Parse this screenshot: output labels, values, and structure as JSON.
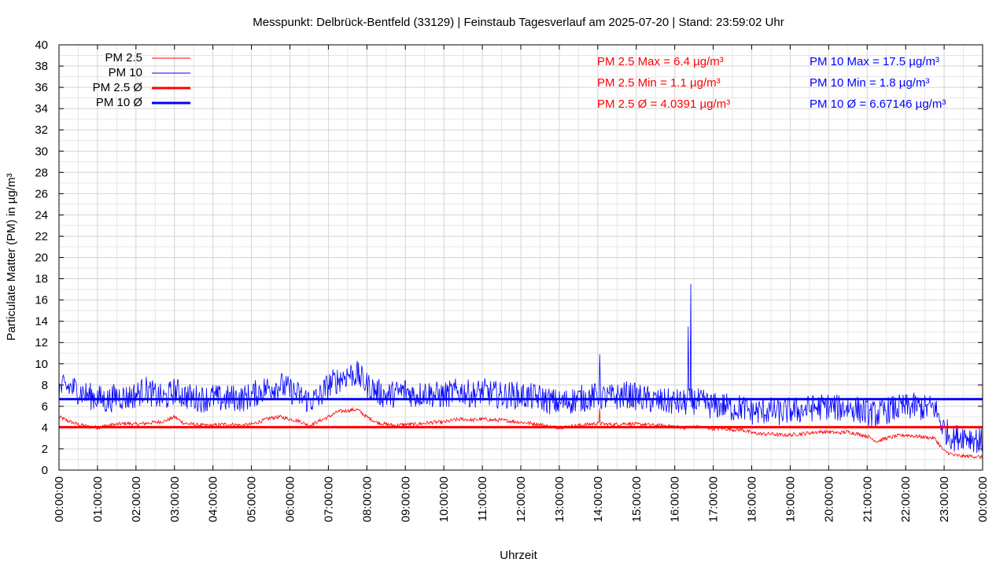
{
  "chart_data": {
    "type": "line",
    "title": "Messpunkt: Delbrück-Bentfeld (33129) | Feinstaub Tagesverlauf am 2025-07-20 | Stand: 23:59:02 Uhr",
    "xlabel": "Uhrzeit",
    "ylabel": "Particulate Matter (PM) in µg/m³",
    "ylim": [
      0,
      40
    ],
    "yticks": [
      0,
      2,
      4,
      6,
      8,
      10,
      12,
      14,
      16,
      18,
      20,
      22,
      24,
      26,
      28,
      30,
      32,
      34,
      36,
      38,
      40
    ],
    "xlim_hours": [
      0,
      24
    ],
    "xtick_labels": [
      "00:00:00",
      "01:00:00",
      "02:00:00",
      "03:00:00",
      "04:00:00",
      "05:00:00",
      "06:00:00",
      "07:00:00",
      "08:00:00",
      "09:00:00",
      "10:00:00",
      "11:00:00",
      "12:00:00",
      "13:00:00",
      "14:00:00",
      "15:00:00",
      "16:00:00",
      "17:00:00",
      "18:00:00",
      "19:00:00",
      "20:00:00",
      "21:00:00",
      "22:00:00",
      "23:00:00",
      "00:00:00"
    ],
    "grid": true,
    "legend_position": "top-left",
    "x_hours": [
      0.0,
      0.25,
      0.5,
      0.75,
      1.0,
      1.25,
      1.5,
      1.75,
      2.0,
      2.25,
      2.5,
      2.75,
      3.0,
      3.25,
      3.5,
      3.75,
      4.0,
      4.25,
      4.5,
      4.75,
      5.0,
      5.25,
      5.5,
      5.75,
      6.0,
      6.25,
      6.5,
      6.75,
      7.0,
      7.25,
      7.5,
      7.75,
      8.0,
      8.25,
      8.5,
      8.75,
      9.0,
      9.25,
      9.5,
      9.75,
      10.0,
      10.25,
      10.5,
      10.75,
      11.0,
      11.25,
      11.5,
      11.75,
      12.0,
      12.25,
      12.5,
      12.75,
      13.0,
      13.25,
      13.5,
      13.75,
      14.0,
      14.25,
      14.5,
      14.75,
      15.0,
      15.25,
      15.5,
      15.75,
      16.0,
      16.25,
      16.5,
      16.75,
      17.0,
      17.25,
      17.5,
      17.75,
      18.0,
      18.25,
      18.5,
      18.75,
      19.0,
      19.25,
      19.5,
      19.75,
      20.0,
      20.25,
      20.5,
      20.75,
      21.0,
      21.25,
      21.5,
      21.75,
      22.0,
      22.25,
      22.5,
      22.75,
      23.0,
      23.25,
      23.5,
      23.75,
      24.0
    ],
    "series": [
      {
        "name": "PM 2.5",
        "color": "#ff0000",
        "style": "thin",
        "values": [
          5.0,
          4.6,
          4.3,
          4.1,
          4.0,
          4.2,
          4.3,
          4.4,
          4.3,
          4.4,
          4.5,
          4.6,
          5.0,
          4.4,
          4.3,
          4.2,
          4.2,
          4.3,
          4.3,
          4.2,
          4.3,
          4.6,
          4.9,
          5.0,
          4.8,
          4.6,
          4.2,
          4.6,
          5.0,
          5.5,
          5.6,
          5.7,
          5.0,
          4.5,
          4.3,
          4.2,
          4.3,
          4.3,
          4.4,
          4.5,
          4.5,
          4.7,
          4.8,
          4.7,
          4.8,
          4.7,
          4.7,
          4.6,
          4.5,
          4.4,
          4.3,
          4.1,
          4.0,
          4.1,
          4.2,
          4.3,
          4.4,
          4.3,
          4.3,
          4.4,
          4.3,
          4.3,
          4.2,
          4.2,
          4.1,
          4.0,
          4.1,
          4.0,
          3.9,
          3.9,
          3.8,
          3.8,
          3.5,
          3.4,
          3.4,
          3.3,
          3.3,
          3.4,
          3.5,
          3.6,
          3.6,
          3.5,
          3.6,
          3.4,
          3.2,
          2.7,
          3.0,
          3.2,
          3.3,
          3.2,
          3.1,
          3.0,
          1.8,
          1.4,
          1.3,
          1.3,
          1.2
        ]
      },
      {
        "name": "PM 10",
        "color": "#0000ff",
        "style": "thin",
        "values": [
          7.6,
          7.8,
          7.5,
          7.0,
          6.8,
          6.5,
          7.0,
          6.8,
          7.1,
          7.6,
          7.0,
          6.7,
          7.5,
          7.0,
          6.8,
          6.7,
          6.9,
          6.6,
          6.8,
          6.7,
          7.0,
          7.5,
          7.8,
          8.0,
          7.5,
          7.0,
          6.5,
          6.8,
          8.0,
          8.5,
          9.0,
          9.0,
          8.0,
          7.4,
          7.0,
          7.2,
          7.5,
          7.0,
          7.3,
          7.1,
          7.0,
          7.3,
          7.4,
          7.1,
          7.4,
          7.2,
          7.0,
          7.1,
          7.0,
          6.9,
          6.8,
          6.5,
          6.3,
          6.5,
          6.7,
          6.8,
          7.0,
          6.8,
          6.9,
          7.1,
          6.9,
          6.7,
          6.5,
          6.4,
          6.4,
          6.3,
          6.5,
          6.3,
          6.0,
          6.1,
          5.8,
          5.9,
          5.5,
          5.5,
          5.6,
          5.4,
          5.6,
          5.6,
          5.8,
          5.9,
          6.0,
          5.8,
          5.9,
          5.7,
          5.4,
          5.2,
          5.6,
          5.8,
          5.9,
          6.0,
          5.8,
          5.9,
          3.8,
          3.0,
          3.3,
          3.0,
          2.6
        ]
      },
      {
        "name": "PM 2.5 Ø",
        "color": "#ff0000",
        "style": "thick",
        "constant": 4.0391
      },
      {
        "name": "PM 10 Ø",
        "color": "#0000ff",
        "style": "thick",
        "constant": 6.67146
      }
    ],
    "spikes": [
      {
        "series": "PM 10",
        "x_hours": 14.05,
        "value": 10.9
      },
      {
        "series": "PM 10",
        "x_hours": 16.35,
        "value": 13.5
      },
      {
        "series": "PM 10",
        "x_hours": 16.42,
        "value": 17.5
      },
      {
        "series": "PM 2.5",
        "x_hours": 14.05,
        "value": 5.8
      }
    ],
    "stats_pm25": [
      "PM 2.5 Max = 6.4 µg/m³",
      "PM 2.5 Min = 1.1 µg/m³",
      "PM 2.5 Ø = 4.0391 µg/m³"
    ],
    "stats_pm10": [
      "PM 10 Max = 17.5 µg/m³",
      "PM 10 Min = 1.8 µg/m³",
      "PM 10 Ø = 6.67146 µg/m³"
    ],
    "stats_colors": {
      "pm25": "#ff0000",
      "pm10": "#0000ff"
    }
  }
}
